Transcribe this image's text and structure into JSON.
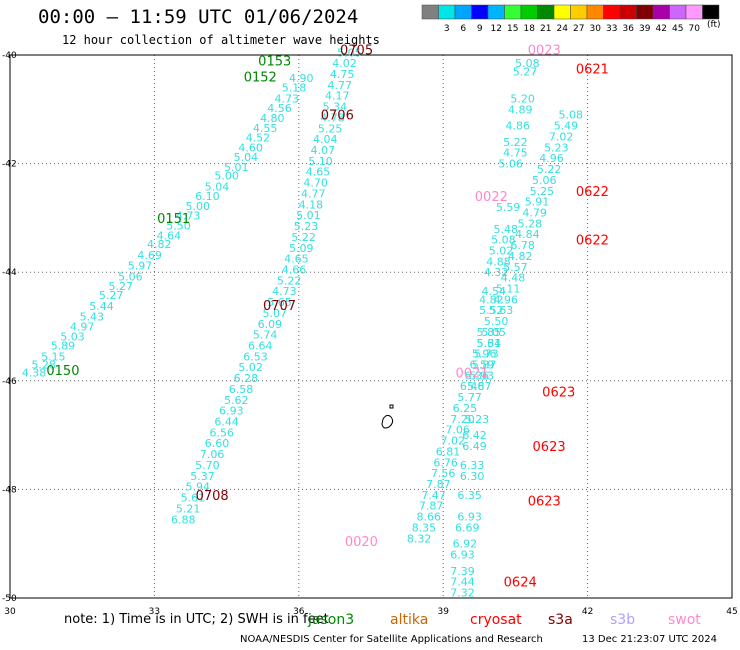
{
  "header": {
    "title": "00:00 – 11:59 UTC 01/06/2024",
    "subtitle": "12 hour collection of altimeter wave heights"
  },
  "color_scale": {
    "unit": "(ft)",
    "bins": [
      {
        "label": "",
        "color": "#808080"
      },
      {
        "label": "3",
        "color": "#00e5e5"
      },
      {
        "label": "6",
        "color": "#00a5ff"
      },
      {
        "label": "9",
        "color": "#0000ff"
      },
      {
        "label": "12",
        "color": "#00b5ff"
      },
      {
        "label": "15",
        "color": "#33ff33"
      },
      {
        "label": "18",
        "color": "#00cc00"
      },
      {
        "label": "21",
        "color": "#008800"
      },
      {
        "label": "24",
        "color": "#ffff00"
      },
      {
        "label": "27",
        "color": "#ffcc00"
      },
      {
        "label": "30",
        "color": "#ff8800"
      },
      {
        "label": "33",
        "color": "#ff0000"
      },
      {
        "label": "36",
        "color": "#cc0000"
      },
      {
        "label": "39",
        "color": "#800000"
      },
      {
        "label": "42",
        "color": "#aa00aa"
      },
      {
        "label": "45",
        "color": "#cc66ff"
      },
      {
        "label": "70",
        "color": "#ff99ff"
      },
      {
        "label": "",
        "color": "#000000"
      }
    ]
  },
  "colors": {
    "wave_value": "#33e0e0",
    "jason3": "#008800",
    "saral": "#cc6600",
    "cryosat": "#ff0000",
    "s3a": "#800000",
    "s3b": "#b0a0ff",
    "swot": "#ff88cc",
    "grid": "#666666"
  },
  "footer": {
    "note": "note:  1) Time is in UTC; 2) SWH is in feet",
    "credit": "NOAA/NESDIS Center for Satellite Applications and Research",
    "timestamp": "13 Dec 21:23:07 UTC 2024"
  },
  "legend": [
    {
      "label": "jason3",
      "color": "#008800"
    },
    {
      "label": "altika",
      "color": "#cc6600"
    },
    {
      "label": "cryosat",
      "color": "#ff0000"
    },
    {
      "label": "s3a",
      "color": "#800000"
    },
    {
      "label": "s3b",
      "color": "#b0a0ff"
    },
    {
      "label": "swot",
      "color": "#ff88cc"
    }
  ],
  "chart_data": {
    "type": "scatter",
    "xlim": [
      30,
      45
    ],
    "ylim": [
      -50,
      -40
    ],
    "x_ticks": [
      "30",
      "33",
      "36",
      "39",
      "42",
      "45"
    ],
    "y_ticks": [
      "-40",
      "-42",
      "-44",
      "-46",
      "-48",
      "-50"
    ],
    "grid": true,
    "tracks": [
      {
        "name": "jason3",
        "time_labels": [
          {
            "text": "0150",
            "x": 31.1,
            "y": -45.8
          },
          {
            "text": "0151",
            "x": 33.4,
            "y": -43.0
          },
          {
            "text": "0152",
            "x": 35.2,
            "y": -40.4
          },
          {
            "text": "0153",
            "x": 35.5,
            "y": -40.1
          }
        ],
        "points": [
          [
            30.5,
            -45.85,
            "4.38"
          ],
          [
            30.7,
            -45.7,
            "5.28"
          ],
          [
            30.9,
            -45.55,
            "5.15"
          ],
          [
            31.1,
            -45.35,
            "5.89"
          ],
          [
            31.3,
            -45.18,
            "5.03"
          ],
          [
            31.5,
            -45.0,
            "4.97"
          ],
          [
            31.7,
            -44.82,
            "5.43"
          ],
          [
            31.9,
            -44.62,
            "5.44"
          ],
          [
            32.1,
            -44.42,
            "5.27"
          ],
          [
            32.3,
            -44.25,
            "5.27"
          ],
          [
            32.5,
            -44.08,
            "5.06"
          ],
          [
            32.7,
            -43.88,
            "5.97"
          ],
          [
            32.9,
            -43.68,
            "4.69"
          ],
          [
            33.1,
            -43.48,
            "4.82"
          ],
          [
            33.3,
            -43.32,
            "4.64"
          ],
          [
            33.5,
            -43.14,
            "5.50"
          ],
          [
            33.7,
            -42.96,
            "4.73"
          ],
          [
            33.9,
            -42.78,
            "5.00"
          ],
          [
            34.1,
            -42.6,
            "6.10"
          ],
          [
            34.3,
            -42.42,
            "5.04"
          ],
          [
            34.5,
            -42.22,
            "5.00"
          ],
          [
            34.7,
            -42.06,
            "5.01"
          ],
          [
            34.9,
            -41.88,
            "5.04"
          ],
          [
            35.0,
            -41.7,
            "4.60"
          ],
          [
            35.15,
            -41.52,
            "4.52"
          ],
          [
            35.3,
            -41.34,
            "4.55"
          ],
          [
            35.45,
            -41.16,
            "4.80"
          ],
          [
            35.6,
            -40.98,
            "4.56"
          ],
          [
            35.75,
            -40.8,
            "4.73"
          ],
          [
            35.9,
            -40.6,
            "5.18"
          ],
          [
            36.05,
            -40.42,
            "4.90"
          ]
        ]
      },
      {
        "name": "s3a",
        "time_labels": [
          {
            "text": "0705",
            "x": 37.2,
            "y": -39.9
          },
          {
            "text": "0706",
            "x": 36.8,
            "y": -41.1
          },
          {
            "text": "0707",
            "x": 35.6,
            "y": -44.6
          },
          {
            "text": "0708",
            "x": 34.2,
            "y": -48.1
          }
        ],
        "points": [
          [
            37.05,
            -39.95,
            "5.05"
          ],
          [
            36.95,
            -40.15,
            "4.02"
          ],
          [
            36.9,
            -40.35,
            "4.75"
          ],
          [
            36.85,
            -40.55,
            "4.77"
          ],
          [
            36.8,
            -40.75,
            "4.17"
          ],
          [
            36.75,
            -40.95,
            "5.34"
          ],
          [
            36.7,
            -41.15,
            "4.78"
          ],
          [
            36.65,
            -41.35,
            "5.25"
          ],
          [
            36.55,
            -41.55,
            "4.04"
          ],
          [
            36.5,
            -41.75,
            "4.07"
          ],
          [
            36.45,
            -41.95,
            "5.10"
          ],
          [
            36.4,
            -42.15,
            "4.65"
          ],
          [
            36.35,
            -42.35,
            "4.70"
          ],
          [
            36.3,
            -42.55,
            "4.77"
          ],
          [
            36.25,
            -42.75,
            "4.18"
          ],
          [
            36.2,
            -42.95,
            "5.01"
          ],
          [
            36.15,
            -43.15,
            "5.23"
          ],
          [
            36.1,
            -43.35,
            "5.22"
          ],
          [
            36.05,
            -43.55,
            "5.09"
          ],
          [
            35.95,
            -43.75,
            "4.65"
          ],
          [
            35.9,
            -43.95,
            "4.66"
          ],
          [
            35.8,
            -44.15,
            "5.22"
          ],
          [
            35.7,
            -44.35,
            "4.73"
          ],
          [
            35.6,
            -44.55,
            "5.65"
          ],
          [
            35.5,
            -44.75,
            "5.07"
          ],
          [
            35.4,
            -44.95,
            "6.09"
          ],
          [
            35.3,
            -45.15,
            "5.74"
          ],
          [
            35.2,
            -45.35,
            "6.64"
          ],
          [
            35.1,
            -45.55,
            "6.53"
          ],
          [
            35.0,
            -45.75,
            "5.02"
          ],
          [
            34.9,
            -45.95,
            "6.28"
          ],
          [
            34.8,
            -46.15,
            "6.58"
          ],
          [
            34.7,
            -46.35,
            "5.62"
          ],
          [
            34.6,
            -46.55,
            "6.93"
          ],
          [
            34.5,
            -46.75,
            "6.44"
          ],
          [
            34.4,
            -46.95,
            "6.56"
          ],
          [
            34.3,
            -47.15,
            "6.60"
          ],
          [
            34.2,
            -47.35,
            "7.06"
          ],
          [
            34.1,
            -47.55,
            "5.70"
          ],
          [
            34.0,
            -47.75,
            "5.37"
          ],
          [
            33.9,
            -47.95,
            "5.94"
          ],
          [
            33.8,
            -48.15,
            "5.61"
          ],
          [
            33.7,
            -48.35,
            "5.21"
          ],
          [
            33.6,
            -48.55,
            "6.88"
          ]
        ]
      },
      {
        "name": "swot",
        "time_labels": [
          {
            "text": "0020",
            "x": 37.3,
            "y": -48.95
          },
          {
            "text": "0021",
            "x": 39.6,
            "y": -45.85
          },
          {
            "text": "0022",
            "x": 40.0,
            "y": -42.6
          },
          {
            "text": "0023",
            "x": 41.1,
            "y": -39.9
          }
        ],
        "points": [
          [
            38.5,
            -48.9,
            "8.32"
          ],
          [
            38.6,
            -48.7,
            "8.35"
          ],
          [
            38.7,
            -48.5,
            "8.66"
          ],
          [
            38.75,
            -48.3,
            "7.87"
          ],
          [
            38.8,
            -48.1,
            "7.47"
          ],
          [
            38.9,
            -47.9,
            "7.87"
          ],
          [
            39.0,
            -47.7,
            "7.56"
          ],
          [
            39.05,
            -47.5,
            "6.76"
          ],
          [
            39.1,
            -47.3,
            "6.81"
          ],
          [
            39.2,
            -47.1,
            "7.02"
          ],
          [
            39.3,
            -46.9,
            "7.06"
          ],
          [
            39.4,
            -46.7,
            "7.20"
          ],
          [
            39.45,
            -46.5,
            "6.25"
          ],
          [
            39.55,
            -46.3,
            "5.77"
          ],
          [
            39.6,
            -46.1,
            "6.46"
          ],
          [
            39.7,
            -45.9,
            "6.36"
          ],
          [
            39.8,
            -45.7,
            "6.59"
          ],
          [
            39.85,
            -45.5,
            "5.96"
          ],
          [
            39.95,
            -45.3,
            "5.31"
          ],
          [
            40.05,
            -45.1,
            "5.05"
          ],
          [
            40.1,
            -44.9,
            "5.50"
          ],
          [
            40.2,
            -44.7,
            "5.63"
          ],
          [
            40.3,
            -44.5,
            "4.96"
          ],
          [
            40.35,
            -44.3,
            "5.11"
          ],
          [
            40.45,
            -44.1,
            "4.48"
          ],
          [
            40.5,
            -43.9,
            "5.57"
          ],
          [
            40.6,
            -43.7,
            "4.82"
          ],
          [
            40.65,
            -43.5,
            "6.78"
          ],
          [
            40.75,
            -43.3,
            "4.84"
          ],
          [
            40.8,
            -43.1,
            "5.28"
          ],
          [
            40.9,
            -42.9,
            "4.79"
          ],
          [
            40.95,
            -42.7,
            "5.91"
          ],
          [
            41.05,
            -42.5,
            "5.25"
          ],
          [
            41.1,
            -42.3,
            "5.06"
          ],
          [
            41.2,
            -42.1,
            "5.22"
          ],
          [
            41.25,
            -41.9,
            "4.96"
          ],
          [
            41.35,
            -41.7,
            "5.23"
          ],
          [
            41.45,
            -41.5,
            "7.02"
          ],
          [
            41.55,
            -41.3,
            "5.49"
          ],
          [
            41.65,
            -41.1,
            "5.08"
          ]
        ]
      },
      {
        "name": "cryosat",
        "time_labels": [
          {
            "text": "0621",
            "x": 42.1,
            "y": -40.25
          },
          {
            "text": "0622",
            "x": 42.1,
            "y": -42.5
          },
          {
            "text": "0622",
            "x": 42.1,
            "y": -43.4
          },
          {
            "text": "0623",
            "x": 41.4,
            "y": -46.2
          },
          {
            "text": "0623",
            "x": 41.2,
            "y": -47.2
          },
          {
            "text": "0623",
            "x": 41.1,
            "y": -48.2
          },
          {
            "text": "0624",
            "x": 40.6,
            "y": -49.7
          }
        ],
        "points": [
          [
            39.4,
            -49.9,
            "7.32"
          ],
          [
            39.4,
            -49.7,
            "7.44"
          ],
          [
            39.4,
            -49.5,
            "7.39"
          ],
          [
            39.4,
            -49.2,
            "6.93"
          ],
          [
            39.45,
            -49.0,
            "6.92"
          ],
          [
            39.5,
            -48.7,
            "6.69"
          ],
          [
            39.55,
            -48.5,
            "6.93"
          ],
          [
            39.55,
            -48.1,
            "6.35"
          ],
          [
            39.6,
            -47.75,
            "6.30"
          ],
          [
            39.6,
            -47.55,
            "6.33"
          ],
          [
            39.65,
            -47.2,
            "6.49"
          ],
          [
            39.65,
            -47.0,
            "6.42"
          ],
          [
            39.7,
            -46.7,
            "5.23"
          ],
          [
            39.75,
            -46.1,
            "5.87"
          ],
          [
            39.8,
            -45.9,
            "5.93"
          ],
          [
            39.85,
            -45.7,
            "5.87"
          ],
          [
            39.9,
            -45.5,
            "5.73"
          ],
          [
            39.95,
            -45.3,
            "5.64"
          ],
          [
            39.95,
            -45.1,
            "5.85"
          ],
          [
            40.0,
            -44.7,
            "5.52"
          ],
          [
            40.0,
            -44.5,
            "4.82"
          ],
          [
            40.05,
            -44.35,
            "4.54"
          ],
          [
            40.1,
            -44.0,
            "4.32"
          ],
          [
            40.15,
            -43.8,
            "4.88"
          ],
          [
            40.2,
            -43.6,
            "5.02"
          ],
          [
            40.25,
            -43.4,
            "5.08"
          ],
          [
            40.3,
            -43.2,
            "5.48"
          ],
          [
            40.35,
            -42.8,
            "5.59"
          ],
          [
            40.4,
            -42.0,
            "5.06"
          ],
          [
            40.5,
            -41.8,
            "4.75"
          ],
          [
            40.5,
            -41.6,
            "5.22"
          ],
          [
            40.55,
            -41.3,
            "4.86"
          ],
          [
            40.6,
            -41.0,
            "4.89"
          ],
          [
            40.65,
            -40.8,
            "5.20"
          ],
          [
            40.7,
            -40.3,
            "5.27"
          ],
          [
            40.75,
            -40.15,
            "5.08"
          ]
        ]
      }
    ]
  }
}
